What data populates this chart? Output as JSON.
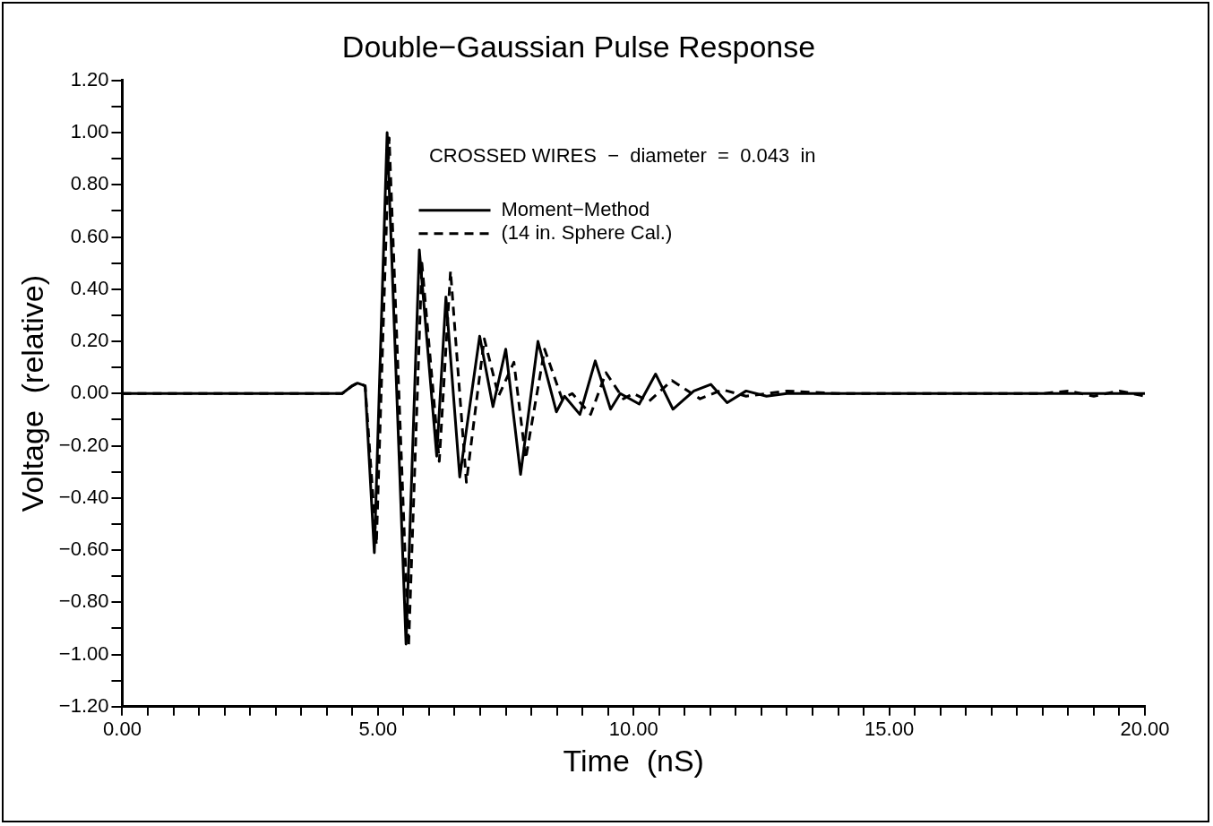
{
  "chart_data": {
    "type": "line",
    "title": "Double−Gaussian Pulse Response",
    "xlabel": "Time  (nS)",
    "ylabel": "Voltage  (relative)",
    "annotations": [
      "CROSSED WIRES  −  diameter  =  0.043  in"
    ],
    "legend": "top",
    "grid": false,
    "marker": "none",
    "xlim": [
      0,
      20
    ],
    "ylim": [
      -1.2,
      1.2
    ],
    "xticks": [
      {
        "value": 0,
        "label": "0.00"
      },
      {
        "value": 0.5,
        "label": null
      },
      {
        "value": 1,
        "label": null
      },
      {
        "value": 1.5,
        "label": null
      },
      {
        "value": 2,
        "label": null
      },
      {
        "value": 2.5,
        "label": null
      },
      {
        "value": 3,
        "label": null
      },
      {
        "value": 3.5,
        "label": null
      },
      {
        "value": 4,
        "label": null
      },
      {
        "value": 4.5,
        "label": null
      },
      {
        "value": 5,
        "label": "5.00"
      },
      {
        "value": 5.5,
        "label": null
      },
      {
        "value": 6,
        "label": null
      },
      {
        "value": 6.5,
        "label": null
      },
      {
        "value": 7,
        "label": null
      },
      {
        "value": 7.5,
        "label": null
      },
      {
        "value": 8,
        "label": null
      },
      {
        "value": 8.5,
        "label": null
      },
      {
        "value": 9,
        "label": null
      },
      {
        "value": 9.5,
        "label": null
      },
      {
        "value": 10,
        "label": "10.00"
      },
      {
        "value": 10.5,
        "label": null
      },
      {
        "value": 11,
        "label": null
      },
      {
        "value": 11.5,
        "label": null
      },
      {
        "value": 12,
        "label": null
      },
      {
        "value": 12.5,
        "label": null
      },
      {
        "value": 13,
        "label": null
      },
      {
        "value": 13.5,
        "label": null
      },
      {
        "value": 14,
        "label": null
      },
      {
        "value": 14.5,
        "label": null
      },
      {
        "value": 15,
        "label": "15.00"
      },
      {
        "value": 15.5,
        "label": null
      },
      {
        "value": 16,
        "label": null
      },
      {
        "value": 16.5,
        "label": null
      },
      {
        "value": 17,
        "label": null
      },
      {
        "value": 17.5,
        "label": null
      },
      {
        "value": 18,
        "label": null
      },
      {
        "value": 18.5,
        "label": null
      },
      {
        "value": 19,
        "label": null
      },
      {
        "value": 19.5,
        "label": null
      },
      {
        "value": 20,
        "label": "20.00"
      }
    ],
    "yticks": [
      {
        "value": -1.2,
        "label": "−1.20"
      },
      {
        "value": -1.1,
        "label": null
      },
      {
        "value": -1.0,
        "label": "−1.00"
      },
      {
        "value": -0.9,
        "label": null
      },
      {
        "value": -0.8,
        "label": "−0.80"
      },
      {
        "value": -0.7,
        "label": null
      },
      {
        "value": -0.6,
        "label": "−0.60"
      },
      {
        "value": -0.5,
        "label": null
      },
      {
        "value": -0.4,
        "label": "−0.40"
      },
      {
        "value": -0.3,
        "label": null
      },
      {
        "value": -0.2,
        "label": "−0.20"
      },
      {
        "value": -0.1,
        "label": null
      },
      {
        "value": 0,
        "label": "0.00"
      },
      {
        "value": 0.1,
        "label": null
      },
      {
        "value": 0.2,
        "label": "0.20"
      },
      {
        "value": 0.3,
        "label": null
      },
      {
        "value": 0.4,
        "label": "0.40"
      },
      {
        "value": 0.5,
        "label": null
      },
      {
        "value": 0.6,
        "label": "0.60"
      },
      {
        "value": 0.7,
        "label": null
      },
      {
        "value": 0.8,
        "label": "0.80"
      },
      {
        "value": 0.9,
        "label": null
      },
      {
        "value": 1.0,
        "label": "1.00"
      },
      {
        "value": 1.1,
        "label": null
      },
      {
        "value": 1.2,
        "label": "1.20"
      }
    ],
    "series": [
      {
        "name": "Moment−Method",
        "color": "#000000",
        "line_style": "solid",
        "x": [
          0,
          1,
          2,
          3,
          3.5,
          4,
          4.3,
          4.5,
          4.6,
          4.75,
          4.93,
          5.18,
          5.55,
          5.81,
          6.15,
          6.33,
          6.6,
          6.99,
          7.25,
          7.5,
          7.79,
          8.13,
          8.49,
          8.65,
          8.95,
          9.25,
          9.55,
          9.74,
          10.11,
          10.43,
          10.77,
          11.18,
          11.51,
          11.83,
          12.2,
          12.6,
          13,
          14,
          15,
          16,
          17,
          18,
          19,
          20
        ],
        "values": [
          0,
          0,
          0,
          0,
          0,
          0,
          0,
          0.03,
          0.04,
          0.03,
          -0.61,
          1.0,
          -0.96,
          0.55,
          -0.24,
          0.37,
          -0.32,
          0.22,
          -0.05,
          0.17,
          -0.31,
          0.2,
          -0.07,
          -0.01,
          -0.08,
          0.125,
          -0.06,
          0,
          -0.04,
          0.075,
          -0.06,
          0.01,
          0.035,
          -0.035,
          0.01,
          -0.01,
          0,
          0,
          0,
          0,
          0,
          0,
          0,
          0
        ]
      },
      {
        "name": "(14 in. Sphere Cal.)",
        "color": "#000000",
        "line_style": "dashed",
        "x": [
          0,
          1,
          2,
          3,
          4,
          4.3,
          4.5,
          4.6,
          4.75,
          4.97,
          5.22,
          5.6,
          5.86,
          6.2,
          6.42,
          6.73,
          7.08,
          7.36,
          7.66,
          7.89,
          8.26,
          8.6,
          8.8,
          9.16,
          9.46,
          9.8,
          10.0,
          10.3,
          10.75,
          11.3,
          11.74,
          12.2,
          13,
          14,
          15,
          16,
          17,
          18,
          18.5,
          19,
          19.5,
          20
        ],
        "values": [
          0,
          0,
          0,
          0,
          0,
          0,
          0.03,
          0.04,
          0.03,
          -0.58,
          0.98,
          -0.97,
          0.5,
          -0.26,
          0.47,
          -0.34,
          0.21,
          -0.01,
          0.12,
          -0.25,
          0.17,
          -0.02,
          0,
          -0.08,
          0.08,
          -0.02,
          0,
          -0.03,
          0.05,
          -0.02,
          0.015,
          -0.01,
          0.01,
          0,
          0,
          0,
          0,
          0,
          0.01,
          -0.01,
          0.01,
          -0.01
        ]
      }
    ]
  }
}
